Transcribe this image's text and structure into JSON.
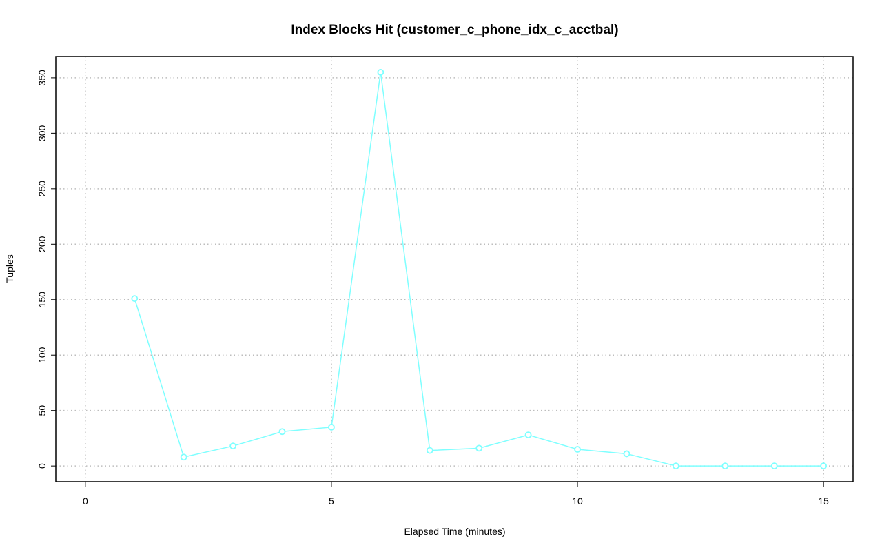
{
  "chart_data": {
    "type": "line",
    "title": "Index Blocks Hit (customer_c_phone_idx_c_acctbal)",
    "xlabel": "Elapsed Time (minutes)",
    "ylabel": "Tuples",
    "x": [
      1,
      2,
      3,
      4,
      5,
      6,
      7,
      8,
      9,
      10,
      11,
      12,
      13,
      14,
      15
    ],
    "series": [
      {
        "values": [
          151,
          8,
          18,
          31,
          35,
          355,
          14,
          16,
          28,
          15,
          11,
          0,
          0,
          0,
          0
        ],
        "color": "#7FFFFF"
      }
    ],
    "xlim": [
      -0.6,
      15.6
    ],
    "ylim": [
      -14.2,
      369.2
    ],
    "xticks": [
      0,
      5,
      10,
      15
    ],
    "yticks": [
      0,
      50,
      100,
      150,
      200,
      250,
      300,
      350
    ],
    "grid": true,
    "grid_style": "dotted",
    "marker": "open-circle",
    "legend": "none"
  }
}
